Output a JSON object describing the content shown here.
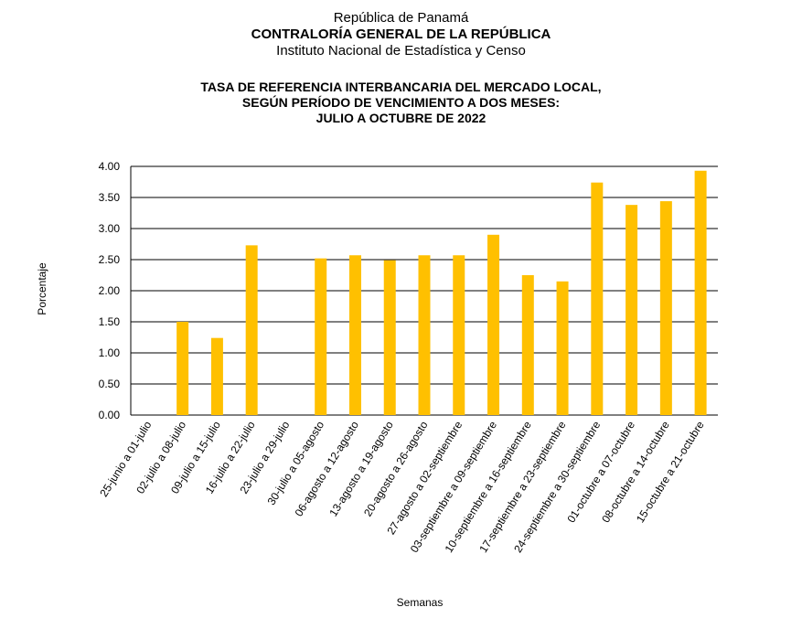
{
  "header": {
    "line1": "República de Panamá",
    "line2": "CONTRALORÍA GENERAL DE LA REPÚBLICA",
    "line3": "Instituto  Nacional de Estadística y Censo"
  },
  "chart_data": {
    "type": "bar",
    "title": [
      "TASA DE REFERENCIA INTERBANCARIA DEL MERCADO LOCAL,",
      "SEGÚN PERÍODO DE VENCIMIENTO A DOS MESES:",
      "JULIO A OCTUBRE DE 2022"
    ],
    "xlabel": "Semanas",
    "ylabel": "Porcentaje",
    "ylim": [
      0,
      4
    ],
    "yticks": [
      "0.00",
      "0.50",
      "1.00",
      "1.50",
      "2.00",
      "2.50",
      "3.00",
      "3.50",
      "4.00"
    ],
    "grid": true,
    "color": "#FFC000",
    "categories": [
      "25-junio a 01-julio",
      "02-julio a 08-julio",
      "09-julio a 15-julio",
      "16-julio a 22-julio",
      "23-julio a 29-julio",
      "30-julio a 05-agosto",
      "06-agosto a 12-agosto",
      "13-agosto a 19-agosto",
      "20-agosto a 26-agosto",
      "27-agosto a 02-septiembre",
      "03-septiembre  a 09-septiembre",
      "10-septiembre  a 16-septiembre",
      "17-septiembre  a 23-septiembre",
      "24-septiembre  a 30-septiembre",
      "01-octubre  a 07-octubre",
      "08-octubre  a 14-octubre",
      "15-octubre  a 21-octubre"
    ],
    "values": [
      null,
      1.5,
      1.24,
      2.73,
      null,
      2.52,
      2.57,
      2.49,
      2.57,
      2.57,
      2.9,
      2.25,
      2.15,
      3.74,
      3.38,
      3.44,
      3.93
    ]
  }
}
